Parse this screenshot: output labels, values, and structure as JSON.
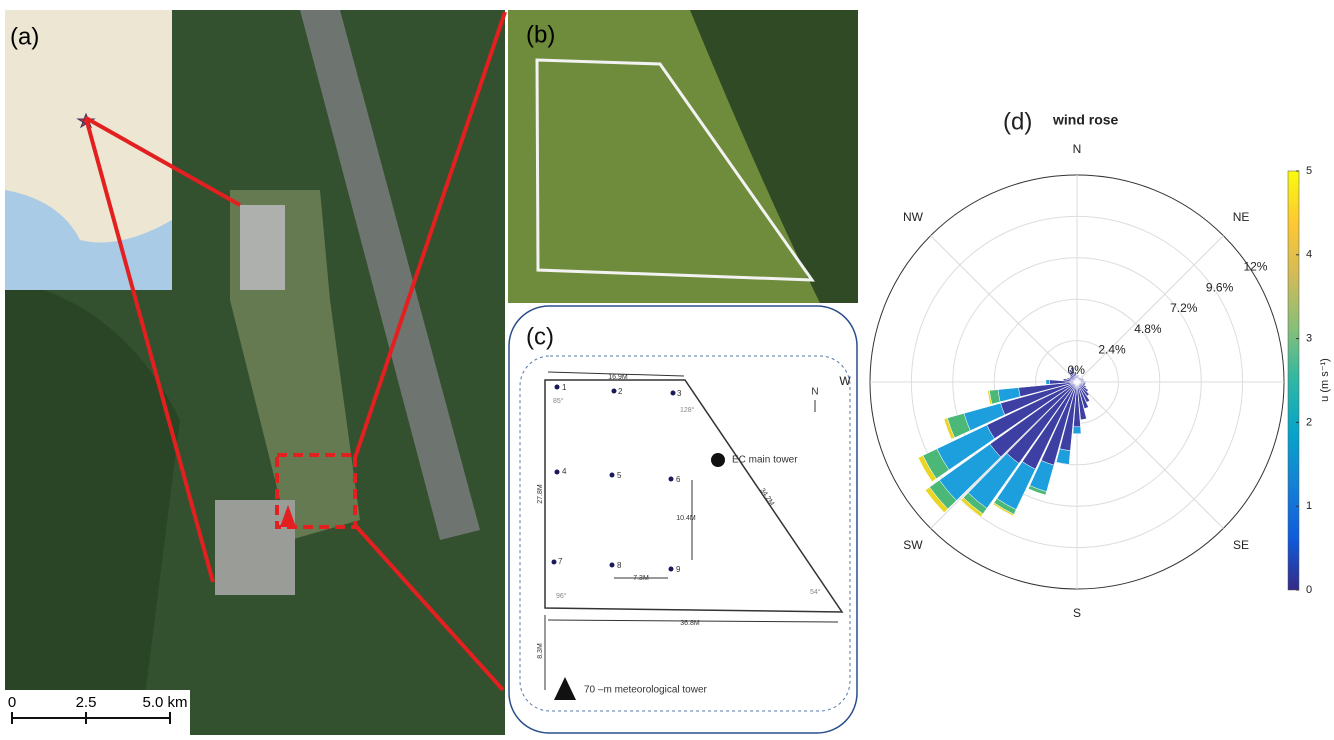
{
  "panel_a": {
    "label": "(a)",
    "scale_bar": [
      "0",
      "2.5",
      "5.0 km"
    ]
  },
  "panel_b": {
    "label": "(b)"
  },
  "panel_c": {
    "label": "(c)",
    "points": [
      "1",
      "2",
      "3",
      "4",
      "5",
      "6",
      "7",
      "8",
      "9"
    ],
    "dimensions": [
      "16.9M",
      "27.8M",
      "34.2M",
      "36.8M",
      "10.4M",
      "7.3M",
      "8.3M"
    ],
    "angles": [
      "85°",
      "128°",
      "96°",
      "54°"
    ],
    "north": "N",
    "ec_tower": "EC main tower",
    "met_tower": "70 –m meteorological tower"
  },
  "chart_data": {
    "type": "windrose",
    "label": "(d)",
    "title": "wind rose",
    "x": [
      0,
      10,
      20,
      30,
      40,
      50,
      60,
      70,
      80,
      90,
      100,
      110,
      120,
      130,
      140,
      150,
      160,
      170,
      180,
      190,
      200,
      210,
      220,
      230,
      240,
      250,
      260,
      270,
      280,
      290,
      300,
      310,
      320,
      330,
      340,
      350
    ],
    "series": [
      {
        "color": "#3e3fa3",
        "values": [
          0.4,
          0.4,
          0.3,
          0.3,
          0.3,
          0.3,
          0.4,
          0.4,
          0.4,
          0.5,
          0.5,
          0.5,
          0.6,
          0.8,
          1.0,
          1.3,
          1.6,
          2.2,
          2.6,
          4.0,
          5.0,
          5.6,
          5.8,
          6.2,
          5.8,
          4.6,
          3.4,
          1.6,
          0.8,
          0.6,
          0.5,
          0.5,
          0.6,
          0.8,
          0.9,
          0.6
        ]
      },
      {
        "color": "#1c9fdc",
        "values": [
          0,
          0,
          0,
          0,
          0,
          0,
          0,
          0,
          0,
          0,
          0,
          0,
          0,
          0,
          0,
          0,
          0,
          0,
          0.4,
          0.8,
          1.6,
          2.6,
          3.2,
          3.6,
          3.2,
          2.2,
          1.2,
          0.2,
          0,
          0,
          0,
          0,
          0,
          0,
          0,
          0
        ]
      },
      {
        "color": "#4cb877",
        "values": [
          0,
          0,
          0,
          0,
          0,
          0,
          0,
          0,
          0,
          0,
          0,
          0,
          0,
          0,
          0,
          0,
          0,
          0,
          0,
          0,
          0.2,
          0.3,
          0.4,
          0.7,
          0.9,
          1.0,
          0.5,
          0,
          0,
          0,
          0,
          0,
          0,
          0,
          0,
          0
        ]
      },
      {
        "color": "#e9d524",
        "values": [
          0,
          0,
          0,
          0,
          0,
          0,
          0,
          0,
          0,
          0,
          0,
          0,
          0,
          0,
          0,
          0,
          0,
          0,
          0,
          0,
          0,
          0.1,
          0.2,
          0.3,
          0.3,
          0.2,
          0.1,
          0,
          0,
          0,
          0,
          0,
          0,
          0,
          0,
          0
        ]
      }
    ],
    "rlim": [
      0,
      12
    ],
    "rticks": [
      {
        "value": 0,
        "label": "0%"
      },
      {
        "value": 2.4,
        "label": "2.4%"
      },
      {
        "value": 4.8,
        "label": "4.8%"
      },
      {
        "value": 7.2,
        "label": "7.2%"
      },
      {
        "value": 9.6,
        "label": "9.6%"
      },
      {
        "value": 12,
        "label": "12%"
      }
    ],
    "direction_labels": [
      {
        "value": 0,
        "label": "N"
      },
      {
        "value": 45,
        "label": "NE"
      },
      {
        "value": 135,
        "label": "SE"
      },
      {
        "value": 180,
        "label": "S"
      },
      {
        "value": 225,
        "label": "SW"
      },
      {
        "value": 270,
        "label": "W"
      },
      {
        "value": 315,
        "label": "NW"
      }
    ],
    "clim": [
      0,
      5
    ],
    "cticks": [
      0,
      1,
      2,
      3,
      4,
      5
    ],
    "colorbar_label": "u (m s⁻¹)",
    "colormap": [
      "#352a87",
      "#0f5cdd",
      "#1481d6",
      "#06a4ca",
      "#2eb7a4",
      "#87bf77",
      "#d1bb59",
      "#fec832",
      "#f9fb0e"
    ]
  }
}
